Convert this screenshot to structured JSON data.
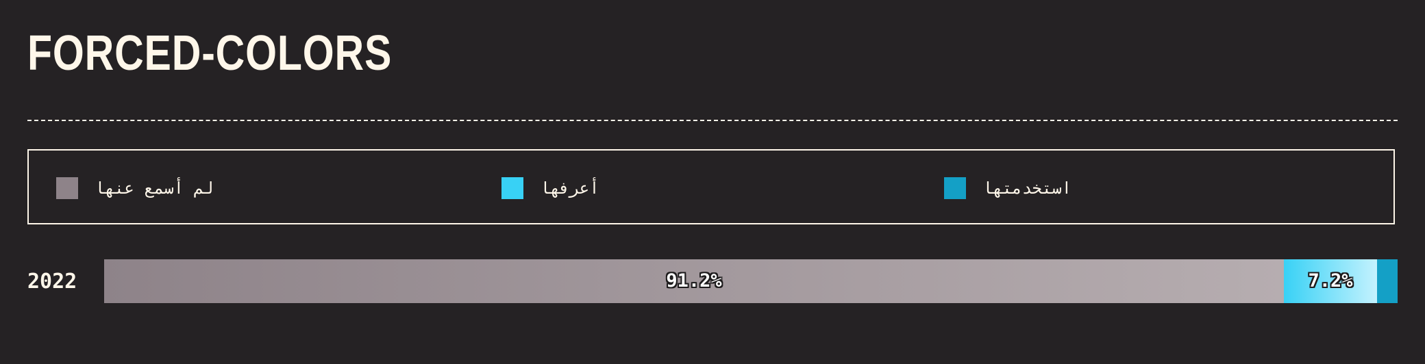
{
  "title": "FORCED-COLORS",
  "colors": {
    "background": "#252224",
    "text": "#fff7ea",
    "never_heard": "#8e8389",
    "never_heard_end": "#b6adb0",
    "know_it": "#38d1f5",
    "know_it_end": "#c4f2fe",
    "used_it": "#14a0c6"
  },
  "legend": [
    {
      "key": "never_heard",
      "label": "لم أسمع عنها",
      "color": "#8e8389"
    },
    {
      "key": "know_it",
      "label": "أعرفها",
      "color": "#38d1f5"
    },
    {
      "key": "used_it",
      "label": "استخدمتها",
      "color": "#14a0c6"
    }
  ],
  "chart_data": {
    "type": "bar",
    "orientation": "horizontal",
    "stacked": true,
    "categories": [
      "2022"
    ],
    "series": [
      {
        "name": "لم أسمع عنها",
        "values": [
          91.2
        ],
        "label": "91.2%"
      },
      {
        "name": "أعرفها",
        "values": [
          7.2
        ],
        "label": "7.2%"
      },
      {
        "name": "استخدمتها",
        "values": [
          1.6
        ],
        "label": ""
      }
    ],
    "xlim": [
      0,
      100
    ],
    "grid": false,
    "legend_position": "top"
  }
}
